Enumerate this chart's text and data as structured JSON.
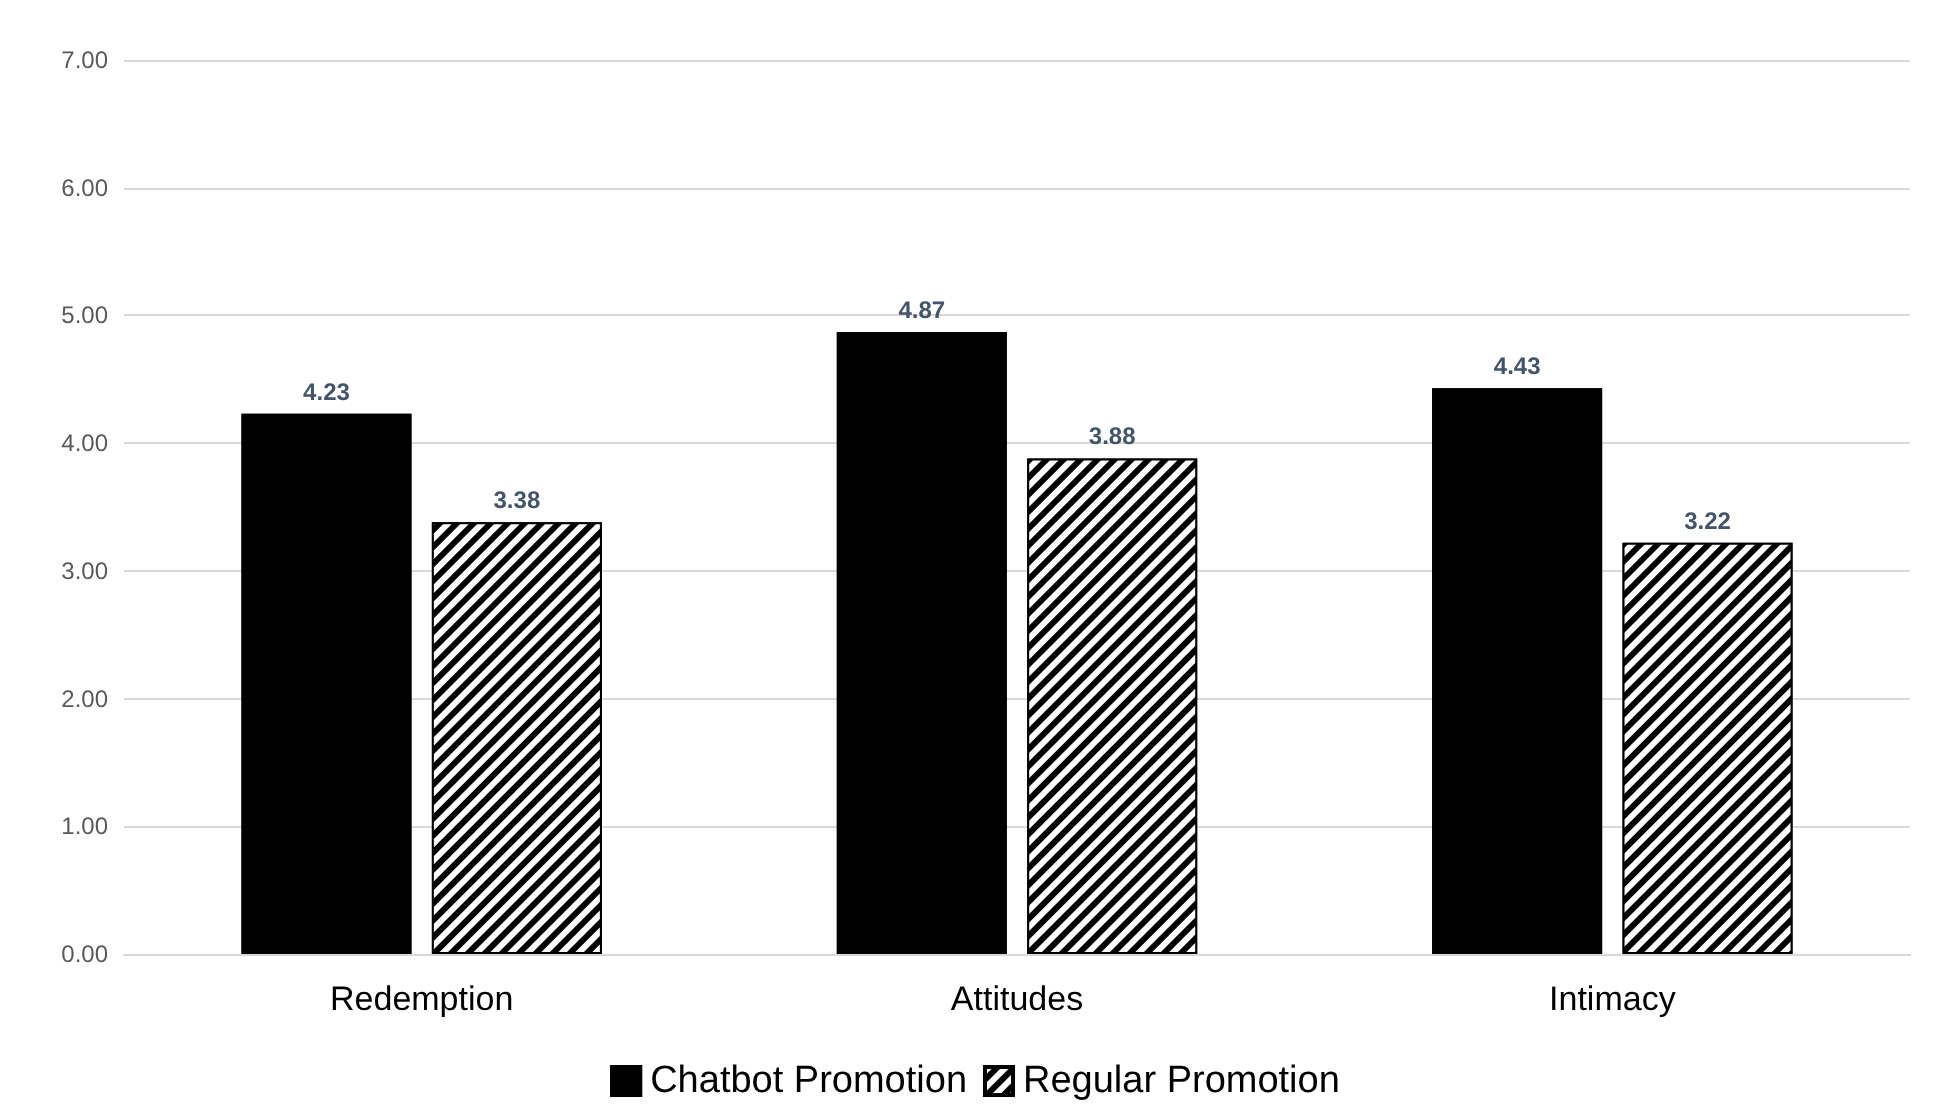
{
  "chart_data": {
    "type": "bar",
    "categories": [
      "Redemption",
      "Attitudes",
      "Intimacy"
    ],
    "series": [
      {
        "name": "Chatbot Promotion",
        "color": "#000000",
        "values": [
          4.23,
          4.87,
          4.43
        ]
      },
      {
        "name": "Regular Promotion",
        "color": "#000000",
        "values": [
          3.38,
          3.88,
          3.22
        ]
      }
    ],
    "ylim": [
      0,
      7
    ],
    "yticks": [
      {
        "value": 0,
        "label": "0.00"
      },
      {
        "value": 1,
        "label": "1.00"
      },
      {
        "value": 2,
        "label": "2.00"
      },
      {
        "value": 3,
        "label": "3.00"
      },
      {
        "value": 4,
        "label": "4.00"
      },
      {
        "value": 5,
        "label": "5.00"
      },
      {
        "value": 6,
        "label": "6.00"
      },
      {
        "value": 7,
        "label": "7.00"
      }
    ],
    "grid": "y",
    "legend": "bottom",
    "data_labels": true
  }
}
